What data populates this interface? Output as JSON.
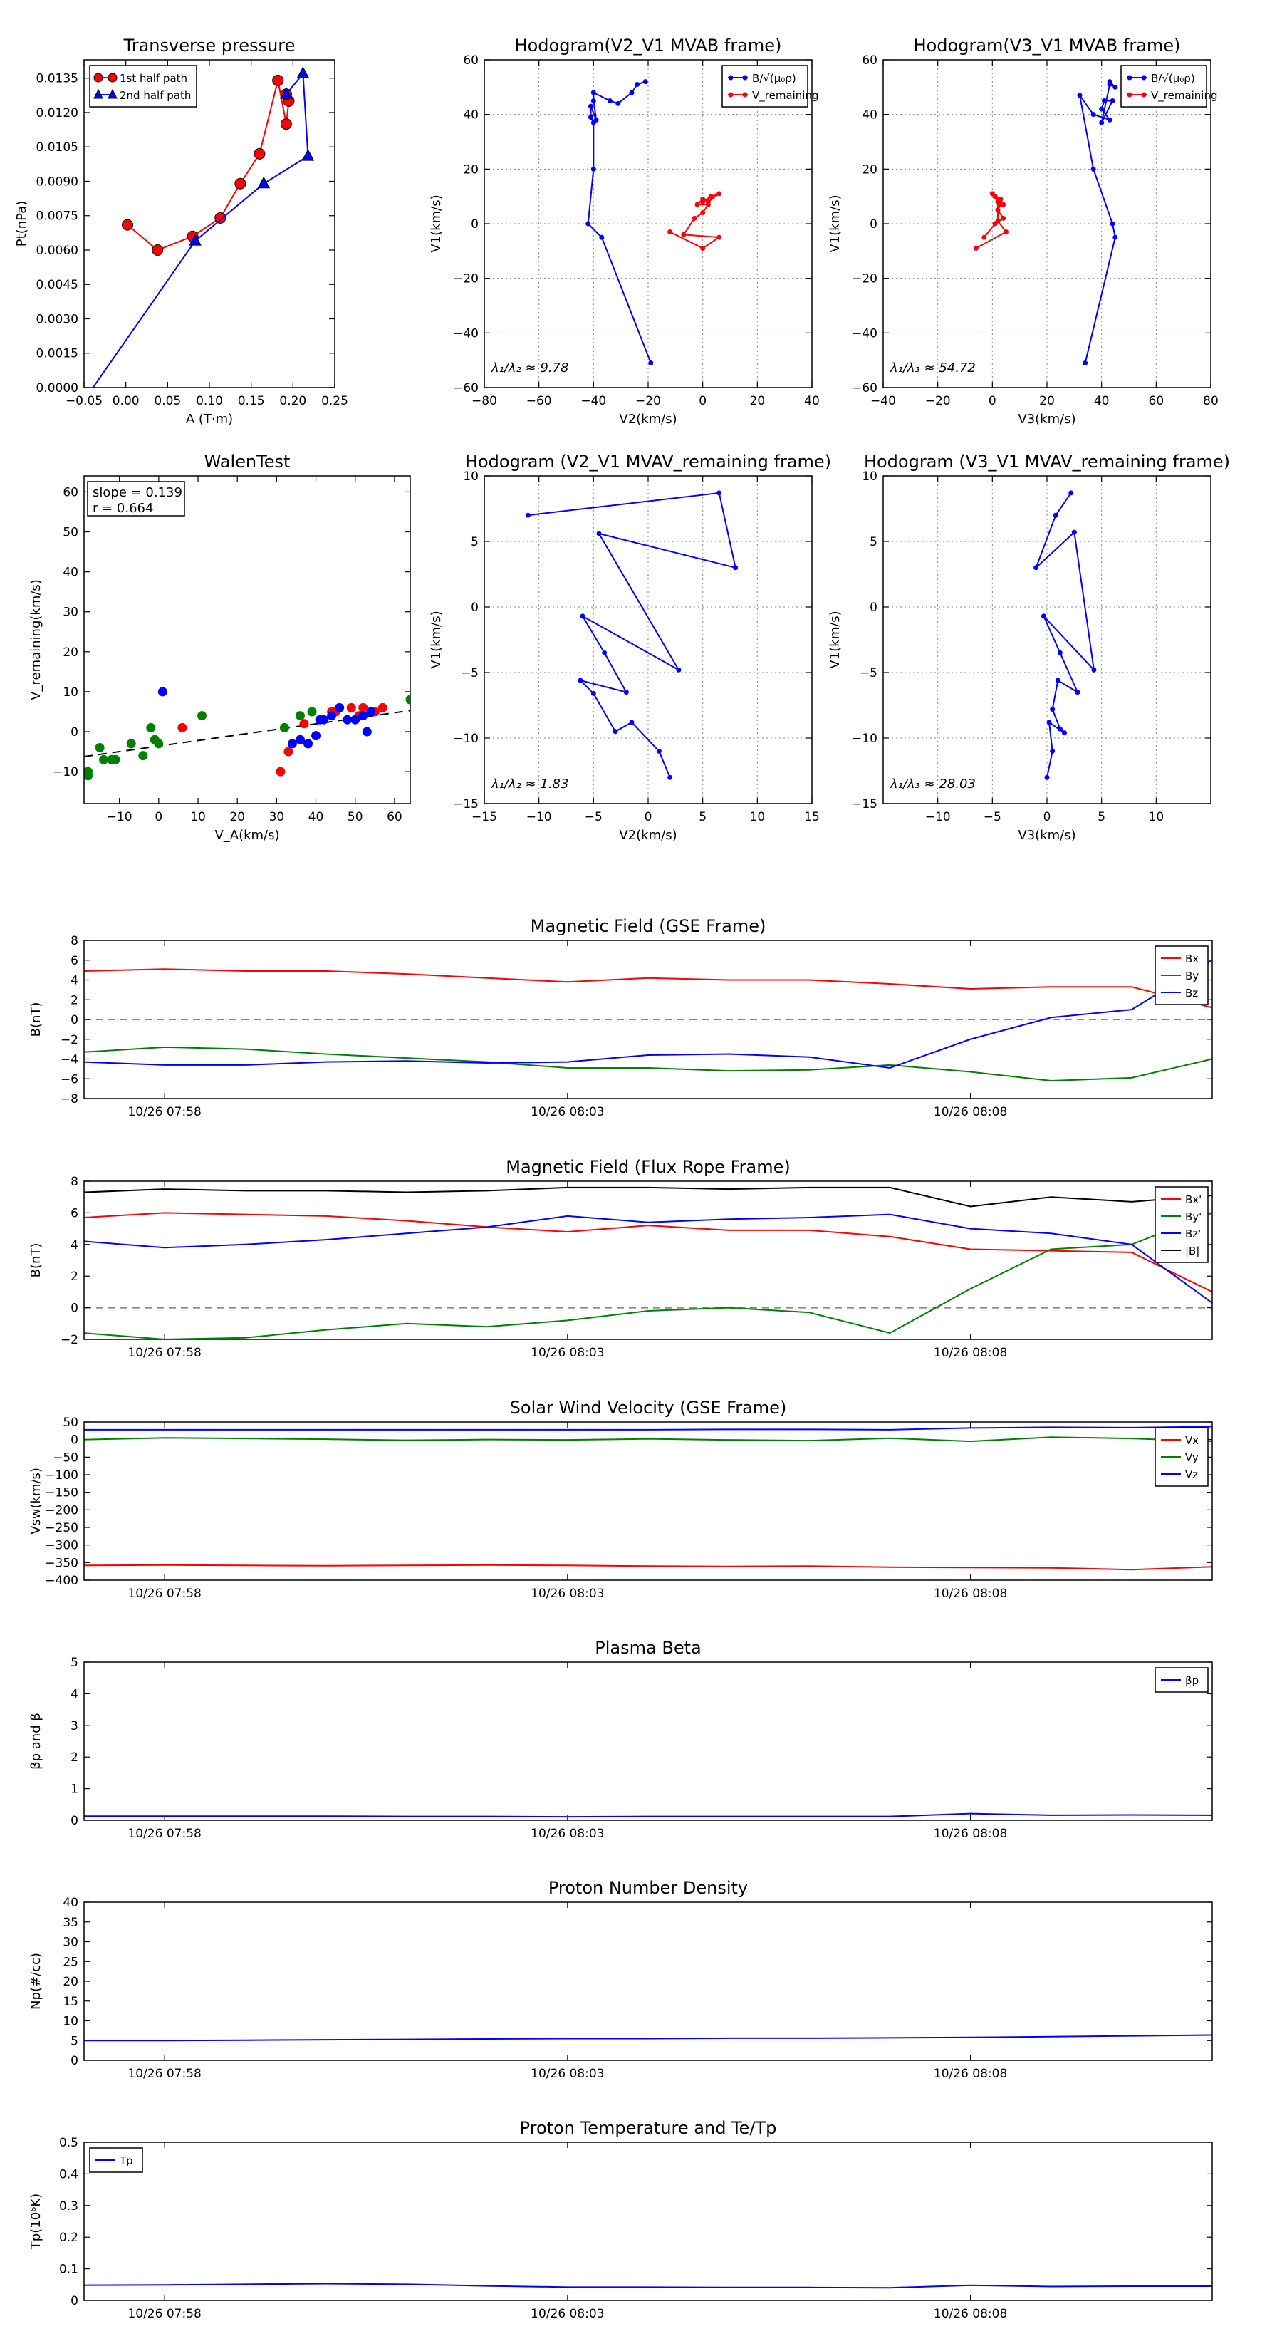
{
  "chart_data": [
    {
      "type": "scatter",
      "title": "Transverse pressure",
      "xlabel": "A (T·m)",
      "ylabel": "Pt(nPa)",
      "xlim": [
        -0.05,
        0.25
      ],
      "ylim": [
        0.0,
        0.0143
      ],
      "xticks": [
        -0.05,
        0.0,
        0.05,
        0.1,
        0.15,
        0.2,
        0.25
      ],
      "xtick_labels": [
        "−0.05",
        "0.00",
        "0.05",
        "0.10",
        "0.15",
        "0.20",
        "0.25"
      ],
      "yticks": [
        0.0,
        0.0015,
        0.003,
        0.0045,
        0.006,
        0.0075,
        0.009,
        0.0105,
        0.012,
        0.0135
      ],
      "ytick_labels": [
        "0.0000",
        "0.0015",
        "0.0030",
        "0.0045",
        "0.0060",
        "0.0075",
        "0.0090",
        "0.0105",
        "0.0120",
        "0.0135"
      ],
      "grid": false,
      "legend_position": "top-left",
      "series": [
        {
          "name": "1st half path",
          "color": "#ff0000",
          "marker": "circle",
          "connected": true,
          "x": [
            0.002,
            0.038,
            0.08,
            0.113,
            0.137,
            0.16,
            0.182,
            0.192,
            0.195,
            0.192
          ],
          "y": [
            0.0071,
            0.006,
            0.0066,
            0.0074,
            0.0089,
            0.0102,
            0.0134,
            0.0115,
            0.0125,
            0.0128
          ]
        },
        {
          "name": "2nd half path",
          "color": "#0000ff",
          "marker": "triangle",
          "connected": true,
          "x": [
            0.192,
            0.212,
            0.218,
            0.165,
            0.083,
            -0.045
          ],
          "y": [
            0.0128,
            0.0137,
            0.0101,
            0.0089,
            0.0064,
            -0.0003
          ]
        }
      ]
    },
    {
      "type": "line",
      "title": "Hodogram(V2_V1 MVAB frame)",
      "xlabel": "V2(km/s)",
      "ylabel": "V1(km/s)",
      "xlim": [
        -80,
        40
      ],
      "ylim": [
        -60,
        60
      ],
      "xticks": [
        -80,
        -60,
        -40,
        -20,
        0,
        20,
        40
      ],
      "yticks": [
        -60,
        -40,
        -20,
        0,
        20,
        40,
        60
      ],
      "grid": true,
      "legend_position": "top-right",
      "annotation": "λ₁/λ₂ ≈ 9.78",
      "series": [
        {
          "name": "B/√(μ₀ρ)",
          "color": "#0000ff",
          "x": [
            -19,
            -37,
            -42,
            -40,
            -40,
            -41,
            -41,
            -39,
            -40,
            -40,
            -34,
            -31,
            -26,
            -24,
            -21
          ],
          "y": [
            -51,
            -5,
            0,
            20,
            37,
            39,
            43,
            38,
            45,
            48,
            45,
            44,
            48,
            51,
            52
          ]
        },
        {
          "name": "V_remaining",
          "color": "#ff0000",
          "x": [
            -12,
            0,
            6,
            -7,
            -3,
            0,
            2,
            -2,
            0,
            2,
            6,
            3,
            0
          ],
          "y": [
            -3,
            -9,
            -5,
            -4,
            2,
            4,
            7,
            7,
            9,
            8,
            11,
            10,
            8
          ]
        }
      ]
    },
    {
      "type": "line",
      "title": "Hodogram(V3_V1 MVAB frame)",
      "xlabel": "V3(km/s)",
      "ylabel": "V1(km/s)",
      "xlim": [
        -40,
        80
      ],
      "ylim": [
        -60,
        60
      ],
      "xticks": [
        -40,
        -20,
        0,
        20,
        40,
        60,
        80
      ],
      "yticks": [
        -60,
        -40,
        -20,
        0,
        20,
        40,
        60
      ],
      "grid": true,
      "legend_position": "top-right",
      "annotation": "λ₁/λ₃ ≈ 54.72",
      "series": [
        {
          "name": "B/√(μ₀ρ)",
          "color": "#0000ff",
          "x": [
            34,
            45,
            44,
            37,
            32,
            37,
            43,
            40,
            41,
            44,
            40,
            43,
            45,
            43
          ],
          "y": [
            -51,
            -5,
            0,
            20,
            47,
            40,
            38,
            42,
            45,
            45,
            37,
            51,
            50,
            52
          ]
        },
        {
          "name": "V_remaining",
          "color": "#ff0000",
          "x": [
            -6,
            5,
            2,
            2,
            0,
            3,
            4,
            1,
            3,
            2,
            4,
            1,
            -3
          ],
          "y": [
            -9,
            -3,
            1,
            8,
            11,
            9,
            7,
            10,
            7,
            5,
            2,
            0,
            -5
          ]
        }
      ]
    },
    {
      "type": "scatter",
      "title": "WalenTest",
      "xlabel": "V_A(km/s)",
      "ylabel": "V_remaining(km/s)",
      "xlim": [
        -19,
        64
      ],
      "ylim": [
        -18,
        64
      ],
      "xticks": [
        -10,
        0,
        10,
        20,
        30,
        40,
        50,
        60
      ],
      "yticks": [
        -10,
        0,
        10,
        20,
        30,
        40,
        50,
        60
      ],
      "grid": false,
      "annotation": [
        "slope = 0.139",
        "r = 0.664"
      ],
      "fit_line": {
        "slope": 0.139,
        "intercept": -3.6
      },
      "series": [
        {
          "color": "#008000",
          "x": [
            -18,
            -18,
            -15,
            -14,
            -12,
            -11,
            -7,
            -4,
            -2,
            -1,
            0,
            11,
            32,
            36,
            39,
            64
          ],
          "y": [
            -10,
            -11,
            -4,
            -7,
            -7,
            -7,
            -3,
            -6,
            1,
            -2,
            -3,
            4,
            1,
            4,
            5,
            8
          ]
        },
        {
          "color": "#ff0000",
          "x": [
            6,
            31,
            33,
            37,
            44,
            45,
            49,
            51,
            52,
            55,
            57
          ],
          "y": [
            1,
            -10,
            -5,
            2,
            5,
            5,
            6,
            4,
            6,
            5,
            6
          ]
        },
        {
          "color": "#0000ff",
          "x": [
            1,
            34,
            36,
            38,
            40,
            41,
            42,
            44,
            46,
            48,
            50,
            52,
            53,
            54
          ],
          "y": [
            10,
            -3,
            -2,
            -3,
            -1,
            3,
            3,
            4,
            6,
            3,
            3,
            4,
            0,
            5
          ]
        }
      ]
    },
    {
      "type": "line",
      "title": "Hodogram (V2_V1 MVAV_remaining frame)",
      "xlabel": "V2(km/s)",
      "ylabel": "V1(km/s)",
      "xlim": [
        -15,
        15
      ],
      "ylim": [
        -15,
        10
      ],
      "xticks": [
        -15,
        -10,
        -5,
        0,
        5,
        10,
        15
      ],
      "yticks": [
        -15,
        -10,
        -5,
        0,
        5,
        10
      ],
      "grid": true,
      "annotation": "λ₁/λ₂ ≈ 1.83",
      "series": [
        {
          "color": "#0000ff",
          "x": [
            -11,
            6.5,
            8,
            -4.5,
            2.8,
            -6,
            -4,
            -2,
            -6.2,
            -5,
            -3,
            -1.5,
            1,
            2
          ],
          "y": [
            7,
            8.7,
            3,
            5.6,
            -4.8,
            -0.7,
            -3.5,
            -6.5,
            -5.6,
            -6.6,
            -9.5,
            -8.8,
            -11,
            -13
          ]
        }
      ]
    },
    {
      "type": "line",
      "title": "Hodogram (V3_V1 MVAV_remaining frame)",
      "xlabel": "V3(km/s)",
      "ylabel": "V1(km/s)",
      "xlim": [
        -15,
        15
      ],
      "ylim": [
        -15,
        10
      ],
      "xticks": [
        -10,
        -5,
        0,
        5,
        10
      ],
      "yticks": [
        -15,
        -10,
        -5,
        0,
        5,
        10
      ],
      "grid": true,
      "annotation": "λ₁/λ₃ ≈ 28.03",
      "series": [
        {
          "color": "#0000ff",
          "x": [
            2.2,
            0.8,
            -1,
            2.5,
            4.3,
            -0.3,
            1.2,
            2.8,
            1,
            0.5,
            1.2,
            1.6,
            0.2,
            0.5,
            0
          ],
          "y": [
            8.7,
            7,
            3,
            5.7,
            -4.8,
            -0.7,
            -3.5,
            -6.5,
            -5.6,
            -7.8,
            -9.3,
            -9.6,
            -8.8,
            -11,
            -13
          ]
        }
      ]
    },
    {
      "type": "line",
      "title": "Magnetic Field (GSE Frame)",
      "xlabel": "",
      "ylabel": "B(nT)",
      "xlim": [
        0,
        14
      ],
      "ylim": [
        -8,
        8
      ],
      "yticks": [
        -8,
        -6,
        -4,
        -2,
        0,
        2,
        4,
        6,
        8
      ],
      "xtick_positions": [
        1,
        6,
        11
      ],
      "xtick_labels": [
        "10/26 07:58",
        "10/26 08:03",
        "10/26 08:08"
      ],
      "zero_line": true,
      "legend_position": "top-right",
      "x": [
        0,
        1,
        2,
        3,
        4,
        5,
        6,
        7,
        8,
        9,
        10,
        11,
        12,
        13,
        14
      ],
      "series": [
        {
          "name": "Bx",
          "color": "#ff0000",
          "values": [
            4.9,
            5.1,
            4.9,
            4.9,
            4.6,
            4.2,
            3.8,
            4.2,
            4.0,
            4.0,
            3.6,
            3.1,
            3.3,
            3.3,
            1.2
          ]
        },
        {
          "name": "By",
          "color": "#008000",
          "values": [
            -3.3,
            -2.8,
            -3.0,
            -3.5,
            -3.9,
            -4.3,
            -4.9,
            -4.9,
            -5.2,
            -5.1,
            -4.6,
            -5.3,
            -6.2,
            -5.9,
            -4.0
          ]
        },
        {
          "name": "Bz",
          "color": "#0000ff",
          "values": [
            -4.3,
            -4.6,
            -4.6,
            -4.3,
            -4.2,
            -4.4,
            -4.3,
            -3.6,
            -3.5,
            -3.8,
            -4.9,
            -2.0,
            0.2,
            1.0,
            6.0
          ]
        }
      ]
    },
    {
      "type": "line",
      "title": "Magnetic Field (Flux Rope Frame)",
      "xlabel": "",
      "ylabel": "B(nT)",
      "xlim": [
        0,
        14
      ],
      "ylim": [
        -2,
        8
      ],
      "yticks": [
        -2,
        0,
        2,
        4,
        6,
        8
      ],
      "xtick_positions": [
        1,
        6,
        11
      ],
      "xtick_labels": [
        "10/26 07:58",
        "10/26 08:03",
        "10/26 08:08"
      ],
      "zero_line": true,
      "legend_position": "top-right",
      "x": [
        0,
        1,
        2,
        3,
        4,
        5,
        6,
        7,
        8,
        9,
        10,
        11,
        12,
        13,
        14
      ],
      "series": [
        {
          "name": "Bx'",
          "color": "#ff0000",
          "values": [
            5.7,
            6.0,
            5.9,
            5.8,
            5.5,
            5.1,
            4.8,
            5.2,
            4.9,
            4.9,
            4.5,
            3.7,
            3.6,
            3.5,
            1.0
          ]
        },
        {
          "name": "By'",
          "color": "#008000",
          "values": [
            -1.6,
            -2.0,
            -1.9,
            -1.4,
            -1.0,
            -1.2,
            -0.8,
            -0.2,
            0.0,
            -0.3,
            -1.6,
            1.2,
            3.7,
            4.0,
            6.0
          ]
        },
        {
          "name": "Bz'",
          "color": "#0000ff",
          "values": [
            4.2,
            3.8,
            4.0,
            4.3,
            4.7,
            5.1,
            5.8,
            5.4,
            5.6,
            5.7,
            5.9,
            5.0,
            4.7,
            4.0,
            0.3
          ]
        },
        {
          "name": "|B|",
          "color": "#000000",
          "values": [
            7.3,
            7.5,
            7.4,
            7.4,
            7.3,
            7.4,
            7.6,
            7.6,
            7.5,
            7.6,
            7.6,
            6.4,
            7.0,
            6.7,
            7.1
          ]
        }
      ]
    },
    {
      "type": "line",
      "title": "Solar Wind Velocity (GSE Frame)",
      "xlabel": "",
      "ylabel": "Vsw(km/s)",
      "xlim": [
        0,
        14
      ],
      "ylim": [
        -400,
        50
      ],
      "yticks": [
        -400,
        -350,
        -300,
        -250,
        -200,
        -150,
        -100,
        -50,
        0,
        50
      ],
      "xtick_positions": [
        1,
        6,
        11
      ],
      "xtick_labels": [
        "10/26 07:58",
        "10/26 08:03",
        "10/26 08:08"
      ],
      "legend_position": "top-right",
      "x": [
        0,
        1,
        2,
        3,
        4,
        5,
        6,
        7,
        8,
        9,
        10,
        11,
        12,
        13,
        14
      ],
      "series": [
        {
          "name": "Vx",
          "color": "#ff0000",
          "values": [
            -358,
            -357,
            -358,
            -359,
            -358,
            -357,
            -358,
            -360,
            -361,
            -360,
            -363,
            -364,
            -365,
            -370,
            -362
          ]
        },
        {
          "name": "Vy",
          "color": "#008000",
          "values": [
            0,
            5,
            3,
            1,
            -2,
            0,
            -1,
            2,
            -1,
            -3,
            4,
            -5,
            7,
            3,
            -5
          ]
        },
        {
          "name": "Vz",
          "color": "#0000ff",
          "values": [
            28,
            28,
            28,
            28,
            28,
            28,
            28,
            28,
            29,
            29,
            28,
            33,
            35,
            34,
            37
          ]
        }
      ]
    },
    {
      "type": "line",
      "title": "Plasma Beta",
      "xlabel": "",
      "ylabel": "βp and β",
      "xlim": [
        0,
        14
      ],
      "ylim": [
        0,
        5
      ],
      "yticks": [
        0,
        1,
        2,
        3,
        4,
        5
      ],
      "xtick_positions": [
        1,
        6,
        11
      ],
      "xtick_labels": [
        "10/26 07:58",
        "10/26 08:03",
        "10/26 08:08"
      ],
      "legend_position": "top-right",
      "x": [
        0,
        1,
        2,
        3,
        4,
        5,
        6,
        7,
        8,
        9,
        10,
        11,
        12,
        13,
        14
      ],
      "series": [
        {
          "name": "βp",
          "color": "#0000ff",
          "values": [
            0.13,
            0.13,
            0.13,
            0.13,
            0.12,
            0.12,
            0.11,
            0.12,
            0.12,
            0.12,
            0.12,
            0.21,
            0.16,
            0.17,
            0.16
          ]
        }
      ]
    },
    {
      "type": "line",
      "title": "Proton Number Density",
      "xlabel": "",
      "ylabel": "Np(#/cc)",
      "xlim": [
        0,
        14
      ],
      "ylim": [
        0,
        40
      ],
      "yticks": [
        0,
        5,
        10,
        15,
        20,
        25,
        30,
        35,
        40
      ],
      "xtick_positions": [
        1,
        6,
        11
      ],
      "xtick_labels": [
        "10/26 07:58",
        "10/26 08:03",
        "10/26 08:08"
      ],
      "x": [
        0,
        1,
        2,
        3,
        4,
        5,
        6,
        7,
        8,
        9,
        10,
        11,
        12,
        13,
        14
      ],
      "series": [
        {
          "color": "#0000ff",
          "values": [
            5.0,
            5.0,
            5.1,
            5.2,
            5.3,
            5.4,
            5.5,
            5.5,
            5.6,
            5.6,
            5.7,
            5.8,
            6.0,
            6.2,
            6.4
          ]
        }
      ]
    },
    {
      "type": "line",
      "title": "Proton Temperature and Te/Tp",
      "xlabel": "",
      "ylabel": "Tp(10⁶K)",
      "xlim": [
        0,
        14
      ],
      "ylim": [
        0,
        0.5
      ],
      "yticks": [
        0.0,
        0.1,
        0.2,
        0.3,
        0.4,
        0.5
      ],
      "xtick_positions": [
        1,
        6,
        11
      ],
      "xtick_labels": [
        "10/26 07:58",
        "10/26 08:03",
        "10/26 08:08"
      ],
      "legend_position": "top-left",
      "x": [
        0,
        1,
        2,
        3,
        4,
        5,
        6,
        7,
        8,
        9,
        10,
        11,
        12,
        13,
        14
      ],
      "series": [
        {
          "name": "Tp",
          "color": "#0000ff",
          "values": [
            0.048,
            0.049,
            0.051,
            0.053,
            0.051,
            0.046,
            0.042,
            0.042,
            0.041,
            0.041,
            0.04,
            0.048,
            0.044,
            0.045,
            0.045
          ]
        }
      ]
    }
  ]
}
